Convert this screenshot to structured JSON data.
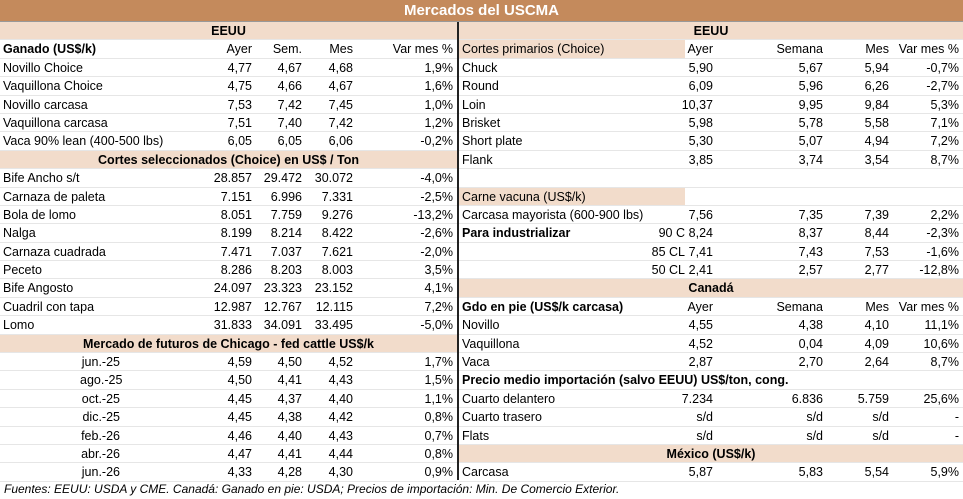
{
  "title": "Mercados del USCMA",
  "left": {
    "section_eeuu": "EEUU",
    "ganado": {
      "header": [
        "Ganado (US$/k)",
        "Ayer",
        "Sem.",
        "Mes",
        "Var mes %"
      ],
      "rows": [
        [
          "Novillo Choice",
          "4,77",
          "4,67",
          "4,68",
          "1,9%"
        ],
        [
          "Vaquillona Choice",
          "4,75",
          "4,66",
          "4,67",
          "1,6%"
        ],
        [
          "Novillo carcasa",
          "7,53",
          "7,42",
          "7,45",
          "1,0%"
        ],
        [
          "Vaquillona carcasa",
          "7,51",
          "7,40",
          "7,42",
          "1,2%"
        ],
        [
          "Vaca 90% lean (400-500 lbs)",
          "6,05",
          "6,05",
          "6,06",
          "-0,2%"
        ]
      ]
    },
    "cortes": {
      "title": "Cortes seleccionados (Choice) en US$ / Ton",
      "rows": [
        [
          "Bife Ancho s/t",
          "28.857",
          "29.472",
          "30.072",
          "-4,0%"
        ],
        [
          "Carnaza de paleta",
          "7.151",
          "6.996",
          "7.331",
          "-2,5%"
        ],
        [
          "Bola de lomo",
          "8.051",
          "7.759",
          "9.276",
          "-13,2%"
        ],
        [
          "Nalga",
          "8.199",
          "8.214",
          "8.422",
          "-2,6%"
        ],
        [
          "Carnaza cuadrada",
          "7.471",
          "7.037",
          "7.621",
          "-2,0%"
        ],
        [
          "Peceto",
          "8.286",
          "8.203",
          "8.003",
          "3,5%"
        ],
        [
          "Bife Angosto",
          "24.097",
          "23.323",
          "23.152",
          "4,1%"
        ],
        [
          "Cuadril con tapa",
          "12.987",
          "12.767",
          "12.115",
          "7,2%"
        ],
        [
          "Lomo",
          "31.833",
          "34.091",
          "33.495",
          "-5,0%"
        ]
      ]
    },
    "futuros": {
      "title": "Mercado de futuros de Chicago - fed cattle US$/k",
      "rows": [
        [
          "jun.-25",
          "4,59",
          "4,50",
          "4,52",
          "1,7%"
        ],
        [
          "ago.-25",
          "4,50",
          "4,41",
          "4,43",
          "1,5%"
        ],
        [
          "oct.-25",
          "4,45",
          "4,37",
          "4,40",
          "1,1%"
        ],
        [
          "dic.-25",
          "4,45",
          "4,38",
          "4,42",
          "0,8%"
        ],
        [
          "feb.-26",
          "4,46",
          "4,40",
          "4,43",
          "0,7%"
        ],
        [
          "abr.-26",
          "4,47",
          "4,41",
          "4,44",
          "0,8%"
        ],
        [
          "jun.-26",
          "4,33",
          "4,28",
          "4,30",
          "0,9%"
        ]
      ]
    }
  },
  "right": {
    "section_eeuu": "EEUU",
    "cortes_primarios": {
      "header": [
        "Cortes primarios (Choice)",
        "Ayer",
        "Semana",
        "Mes",
        "Var mes %"
      ],
      "rows": [
        [
          "Chuck",
          "5,90",
          "5,67",
          "5,94",
          "-0,7%"
        ],
        [
          "Round",
          "6,09",
          "5,96",
          "6,26",
          "-2,7%"
        ],
        [
          "Loin",
          "10,37",
          "9,95",
          "9,84",
          "5,3%"
        ],
        [
          "Brisket",
          "5,98",
          "5,78",
          "5,58",
          "7,1%"
        ],
        [
          "Short plate",
          "5,30",
          "5,07",
          "4,94",
          "7,2%"
        ],
        [
          "Flank",
          "3,85",
          "3,74",
          "3,54",
          "8,7%"
        ]
      ]
    },
    "carne_vacuna": {
      "title": "Carne vacuna (US$/k)",
      "carcasa": [
        "Carcasa mayorista (600-900 lbs)",
        "7,56",
        "7,35",
        "7,39",
        "2,2%"
      ],
      "industrializar_label": "Para industrializar",
      "rows": [
        [
          "90 C",
          "8,24",
          "8,37",
          "8,44",
          "-2,3%"
        ],
        [
          "85 CL",
          "7,41",
          "7,43",
          "7,53",
          "-1,6%"
        ],
        [
          "50 CL",
          "2,41",
          "2,57",
          "2,77",
          "-12,8%"
        ]
      ]
    },
    "canada": {
      "title": "Canadá",
      "header": [
        "Gdo en pie (US$/k carcasa)",
        "Ayer",
        "Semana",
        "Mes",
        "Var mes %"
      ],
      "rows": [
        [
          "Novillo",
          "4,55",
          "4,38",
          "4,10",
          "11,1%"
        ],
        [
          "Vaquillona",
          "4,52",
          "0,04",
          "4,09",
          "10,6%"
        ],
        [
          "Vaca",
          "2,87",
          "2,70",
          "2,64",
          "8,7%"
        ]
      ],
      "importacion_title": "Precio medio importación (salvo EEUU) US$/ton, cong.",
      "importacion_rows": [
        [
          "Cuarto delantero",
          "7.234",
          "6.836",
          "5.759",
          "25,6%"
        ],
        [
          "Cuarto trasero",
          "s/d",
          "s/d",
          "s/d",
          "-"
        ],
        [
          "Flats",
          "s/d",
          "s/d",
          "s/d",
          "-"
        ]
      ]
    },
    "mexico": {
      "title": "México (US$/k)",
      "rows": [
        [
          "Carcasa",
          "5,87",
          "5,83",
          "5,54",
          "5,9%"
        ]
      ]
    }
  },
  "footer": "Fuentes: EEUU: USDA y CME. Canadá: Ganado en pie: USDA; Precios de importación: Min. De Comercio Exterior."
}
